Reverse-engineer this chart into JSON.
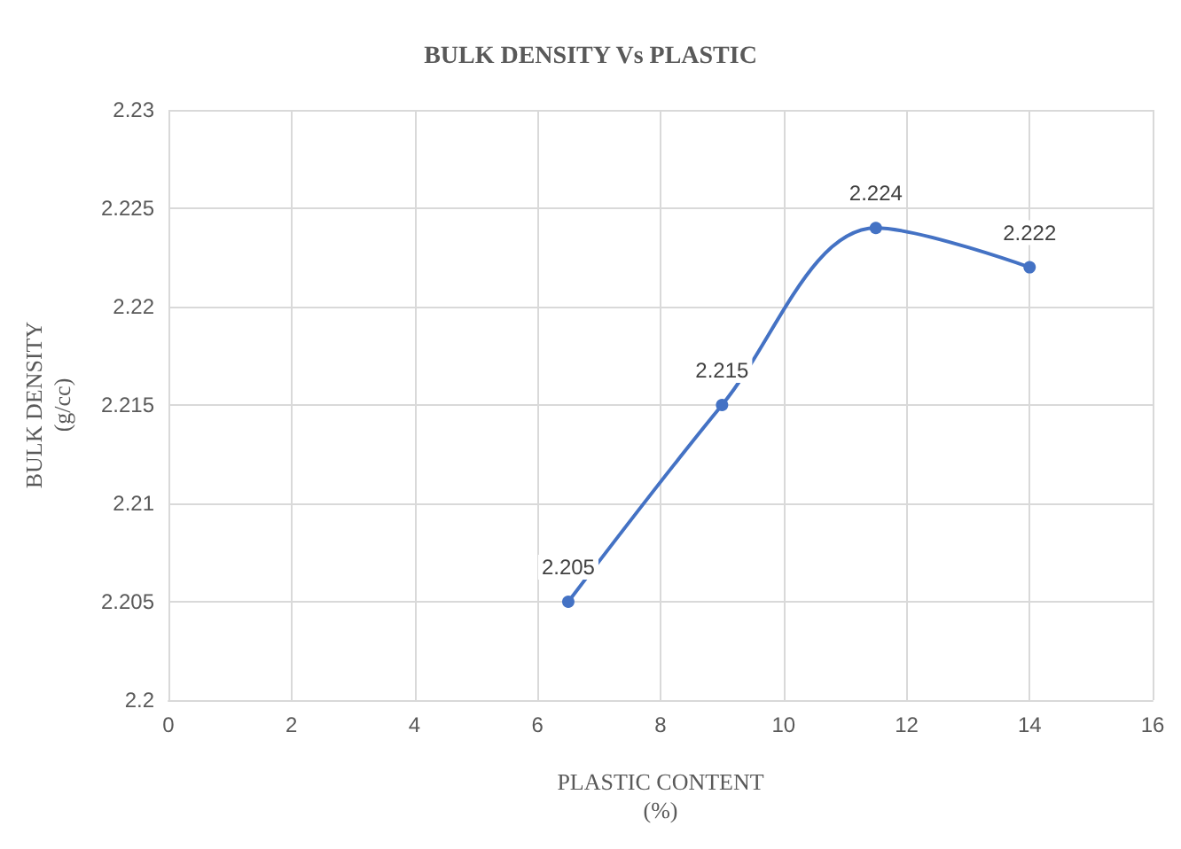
{
  "chart_data": {
    "type": "line",
    "title": "BULK DENSITY Vs PLASTIC",
    "xlabel": "PLASTIC CONTENT\n(%)",
    "ylabel": "BULK DENSITY\n(g/cc)",
    "x": [
      6.5,
      9,
      11.5,
      14
    ],
    "series": [
      {
        "color": "#4472c4",
        "values": [
          2.205,
          2.215,
          2.224,
          2.222
        ]
      }
    ],
    "xlim": [
      0,
      16
    ],
    "xticks": [
      0,
      2,
      4,
      6,
      8,
      10,
      12,
      14,
      16
    ],
    "ylim": [
      2.2,
      2.23
    ],
    "yticks": [
      2.2,
      2.205,
      2.21,
      2.215,
      2.22,
      2.225,
      2.23
    ],
    "grid": true,
    "marker": "circle",
    "line_style": "solid",
    "data_labels": true
  }
}
